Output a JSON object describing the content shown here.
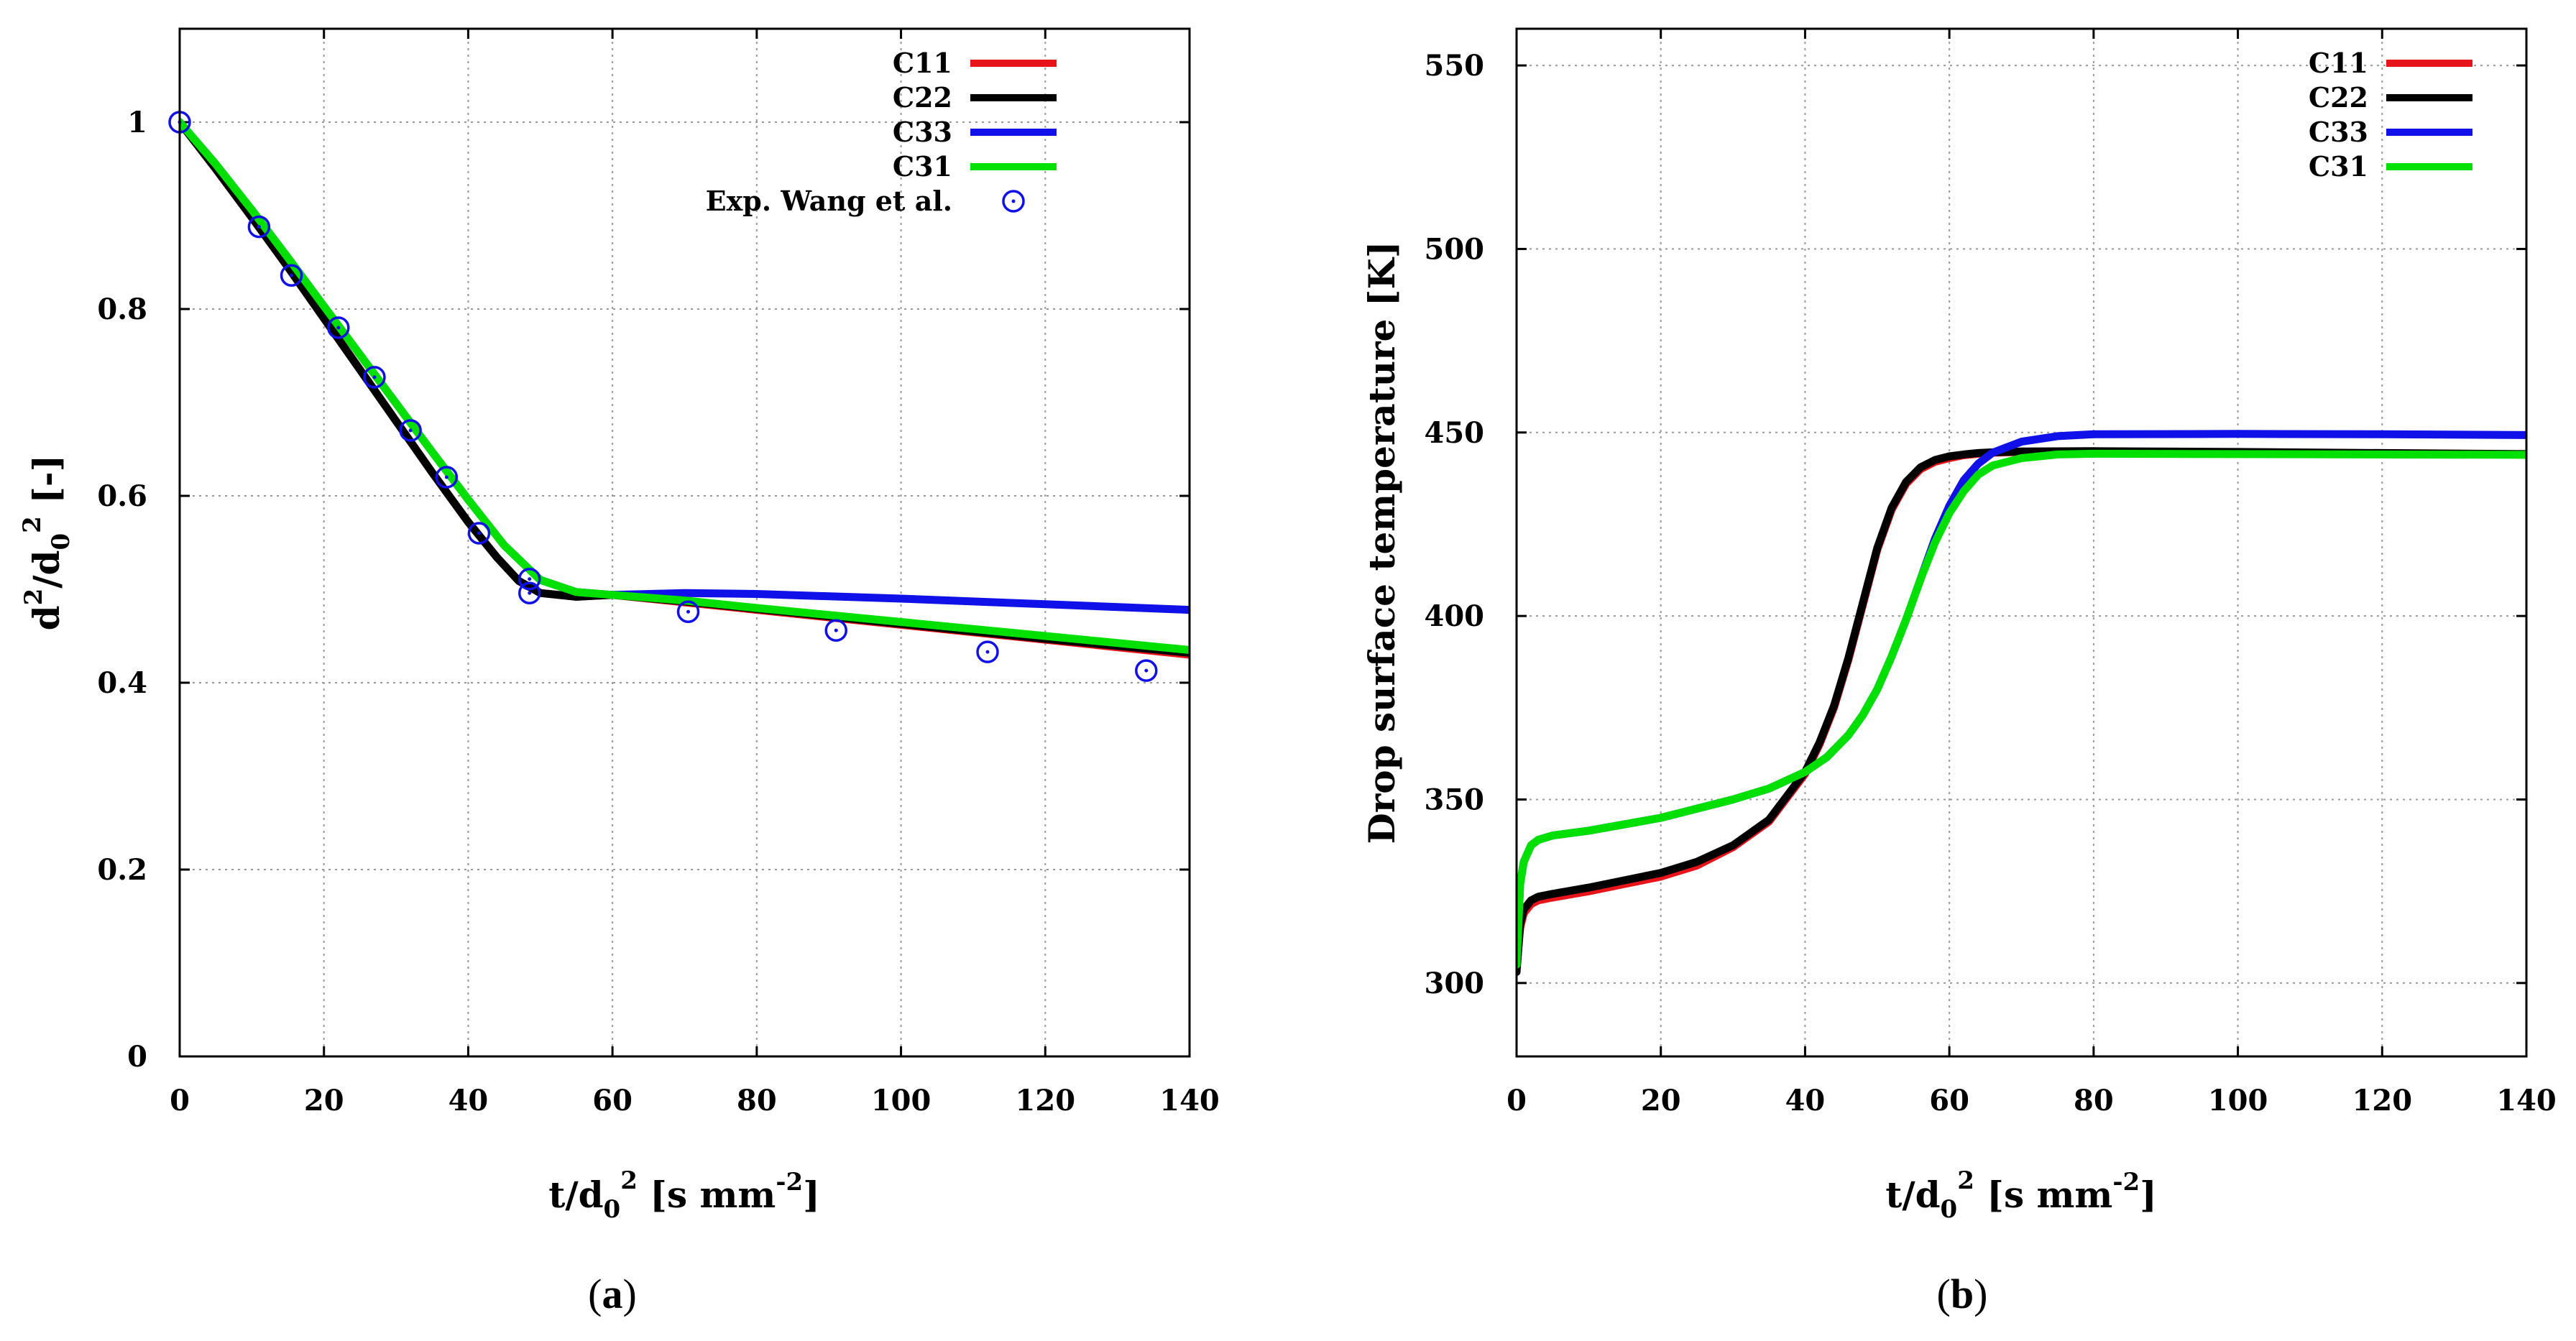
{
  "chart_data": [
    {
      "type": "line",
      "panel": "a",
      "caption_pre": "(",
      "caption_letter": "a",
      "caption_post": ")",
      "xlabel": {
        "base": "t/d",
        "sub": "0",
        "sup": "2",
        "unit_pre": " [s mm",
        "unit_sup": "-2",
        "unit_post": "]"
      },
      "ylabel": {
        "base": "d",
        "sup1": "2",
        "mid": "/d",
        "sub": "0",
        "sup2": "2",
        "post": " [-]"
      },
      "xlim": [
        0,
        140
      ],
      "ylim": [
        0,
        1.1
      ],
      "xticks": [
        0,
        20,
        40,
        60,
        80,
        100,
        120,
        140
      ],
      "yticks": [
        0,
        0.2,
        0.4,
        0.6,
        0.8,
        1
      ],
      "ytick_labels": [
        "0",
        "0.2",
        "0.4",
        "0.6",
        "0.8",
        "1"
      ],
      "grid": true,
      "legend_position": "top-right",
      "series": [
        {
          "name": "C11",
          "color": "#e8141a",
          "x": [
            0,
            5,
            10,
            15,
            20,
            25,
            30,
            35,
            40,
            44,
            47,
            50,
            55,
            60,
            70,
            80,
            100,
            120,
            140
          ],
          "y": [
            1.0,
            0.95,
            0.898,
            0.845,
            0.79,
            0.735,
            0.68,
            0.625,
            0.572,
            0.534,
            0.509,
            0.496,
            0.492,
            0.494,
            0.486,
            0.478,
            0.462,
            0.446,
            0.43
          ]
        },
        {
          "name": "C22",
          "color": "#000000",
          "x": [
            0,
            5,
            10,
            15,
            20,
            25,
            30,
            35,
            40,
            44,
            47,
            50,
            55,
            60,
            70,
            80,
            100,
            120,
            140
          ],
          "y": [
            1.0,
            0.95,
            0.898,
            0.845,
            0.79,
            0.735,
            0.68,
            0.625,
            0.572,
            0.534,
            0.509,
            0.496,
            0.492,
            0.494,
            0.487,
            0.479,
            0.463,
            0.447,
            0.432
          ]
        },
        {
          "name": "C33",
          "color": "#1010e8",
          "x": [
            0,
            5,
            10,
            15,
            20,
            25,
            30,
            35,
            40,
            45,
            50,
            55,
            60,
            70,
            80,
            100,
            120,
            140
          ],
          "y": [
            1.0,
            0.955,
            0.906,
            0.855,
            0.803,
            0.751,
            0.699,
            0.647,
            0.596,
            0.547,
            0.51,
            0.497,
            0.494,
            0.496,
            0.495,
            0.49,
            0.484,
            0.478
          ]
        },
        {
          "name": "C31",
          "color": "#00e000",
          "x": [
            0,
            5,
            10,
            15,
            20,
            25,
            30,
            35,
            40,
            45,
            50,
            55,
            60,
            70,
            80,
            100,
            120,
            140
          ],
          "y": [
            1.0,
            0.955,
            0.906,
            0.855,
            0.803,
            0.751,
            0.699,
            0.647,
            0.596,
            0.547,
            0.51,
            0.497,
            0.494,
            0.488,
            0.48,
            0.465,
            0.45,
            0.435
          ]
        }
      ],
      "scatter": {
        "name": "Exp. Wang et al.",
        "color": "#1010e8",
        "x": [
          0,
          11,
          15.5,
          22,
          27,
          32,
          37,
          41.5,
          48.5,
          48.5,
          70.5,
          91,
          112,
          134
        ],
        "y": [
          1.0,
          0.888,
          0.836,
          0.78,
          0.727,
          0.67,
          0.62,
          0.56,
          0.511,
          0.496,
          0.476,
          0.456,
          0.433,
          0.413
        ]
      }
    },
    {
      "type": "line",
      "panel": "b",
      "caption_pre": "(",
      "caption_letter": "b",
      "caption_post": ")",
      "xlabel": {
        "base": "t/d",
        "sub": "0",
        "sup": "2",
        "unit_pre": " [s mm",
        "unit_sup": "-2",
        "unit_post": "]"
      },
      "ylabel_text": "Drop surface temperature [K]",
      "xlim": [
        0,
        140
      ],
      "ylim": [
        280,
        560
      ],
      "xticks": [
        0,
        20,
        40,
        60,
        80,
        100,
        120,
        140
      ],
      "yticks": [
        300,
        350,
        400,
        450,
        500,
        550
      ],
      "ytick_labels": [
        "300",
        "350",
        "400",
        "450",
        "500",
        "550"
      ],
      "grid": true,
      "legend_position": "top-right",
      "series": [
        {
          "name": "C11",
          "color": "#e8141a",
          "x": [
            0,
            0.5,
            1,
            2,
            3,
            5,
            10,
            15,
            20,
            25,
            30,
            35,
            40,
            42,
            44,
            46,
            48,
            50,
            52,
            54,
            56,
            58,
            60,
            62,
            64,
            66,
            70,
            80,
            100,
            120,
            140
          ],
          "y": [
            304,
            315,
            319,
            321.5,
            322.5,
            323.3,
            325,
            327,
            329,
            332,
            337,
            344,
            357,
            365,
            375,
            388,
            403,
            418,
            429,
            436,
            440,
            442,
            443,
            443.8,
            444.2,
            444.5,
            444.7,
            444.8,
            444.6,
            444.3,
            444
          ]
        },
        {
          "name": "C22",
          "color": "#000000",
          "x": [
            0,
            0.5,
            1,
            2,
            3,
            5,
            10,
            15,
            20,
            25,
            30,
            35,
            40,
            42,
            44,
            46,
            48,
            50,
            52,
            54,
            56,
            58,
            60,
            62,
            64,
            66,
            70,
            80,
            100,
            120,
            140
          ],
          "y": [
            303,
            316,
            320,
            322.5,
            323.5,
            324.3,
            326,
            328,
            330,
            333,
            337.5,
            344.5,
            357.5,
            365.5,
            375.5,
            388.5,
            403.5,
            418.5,
            429.5,
            436.5,
            440.5,
            442.5,
            443.5,
            444,
            444.4,
            444.6,
            444.8,
            444.9,
            444.7,
            444.4,
            444.1
          ]
        },
        {
          "name": "C33",
          "color": "#1010e8",
          "x": [
            0,
            0.5,
            1,
            2,
            3,
            5,
            10,
            20,
            30,
            35,
            40,
            43,
            46,
            48,
            50,
            52,
            54,
            56,
            58,
            60,
            62,
            64,
            66,
            70,
            75,
            80,
            100,
            120,
            140
          ],
          "y": [
            305,
            327,
            333,
            337.5,
            339,
            340.2,
            341.5,
            345,
            350,
            353,
            357.5,
            361.5,
            367.5,
            373,
            380,
            389,
            399,
            410,
            421,
            430,
            437,
            441.5,
            444.5,
            447.5,
            449,
            449.5,
            449.6,
            449.5,
            449.3
          ]
        },
        {
          "name": "C31",
          "color": "#00e000",
          "x": [
            0,
            0.5,
            1,
            2,
            3,
            5,
            10,
            20,
            30,
            35,
            40,
            43,
            46,
            48,
            50,
            52,
            54,
            56,
            58,
            60,
            62,
            64,
            66,
            70,
            75,
            80,
            100,
            120,
            140
          ],
          "y": [
            305,
            327,
            333,
            337.5,
            339,
            340.2,
            341.5,
            345,
            350,
            353,
            357.5,
            361.5,
            367.5,
            373,
            380,
            389,
            399,
            410,
            420,
            428,
            434,
            438.5,
            441,
            443,
            444,
            444.2,
            444.1,
            444,
            443.9
          ]
        }
      ],
      "scatter": null
    }
  ]
}
